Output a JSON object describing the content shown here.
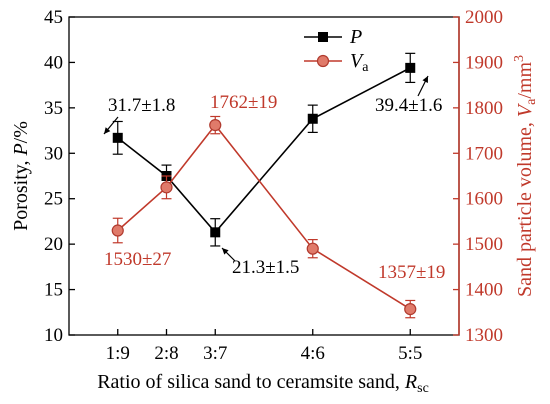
{
  "chart_data": {
    "type": "line",
    "categories": [
      "1:9",
      "2:8",
      "3:7",
      "4:6",
      "5:5"
    ],
    "x_values": [
      1,
      2,
      3,
      5,
      7
    ],
    "xlabel": {
      "main": "Ratio of silica sand to ceramsite sand, ",
      "var": "R",
      "sub": "sc"
    },
    "ylabel_left": {
      "main": "Porosity, ",
      "var": "P",
      "unit": "/%"
    },
    "ylabel_right": {
      "main": "Sand particle volume, ",
      "var": "V",
      "sub": "a",
      "unit": "/mm",
      "sup": "3"
    },
    "ylim_left": [
      10,
      45
    ],
    "ylim_right": [
      1300,
      2000
    ],
    "yticks_left": [
      "10",
      "15",
      "20",
      "25",
      "30",
      "35",
      "40",
      "45"
    ],
    "yticks_right": [
      "1300",
      "1400",
      "1500",
      "1600",
      "1700",
      "1800",
      "1900",
      "2000"
    ],
    "series": [
      {
        "name": "P",
        "axis": "left",
        "color": "#000000",
        "marker": "square",
        "values": [
          31.7,
          27.5,
          21.3,
          33.8,
          39.4
        ],
        "errors": [
          1.8,
          1.2,
          1.5,
          1.5,
          1.6
        ]
      },
      {
        "name": "V",
        "name_sub": "a",
        "axis": "right",
        "color": "#c0392b",
        "marker": "circle",
        "values": [
          1530,
          1625,
          1762,
          1490,
          1357
        ],
        "errors": [
          27,
          25,
          19,
          20,
          19
        ]
      }
    ],
    "annotations": [
      {
        "text": "31.7±1.8",
        "series": 0,
        "index": 0
      },
      {
        "text": "21.3±1.5",
        "series": 0,
        "index": 2
      },
      {
        "text": "39.4±1.6",
        "series": 0,
        "index": 4
      },
      {
        "text": "1530±27",
        "series": 1,
        "index": 0
      },
      {
        "text": "1762±19",
        "series": 1,
        "index": 2
      },
      {
        "text": "1357±19",
        "series": 1,
        "index": 4
      }
    ],
    "legend_position": "top-right",
    "grid": false
  }
}
